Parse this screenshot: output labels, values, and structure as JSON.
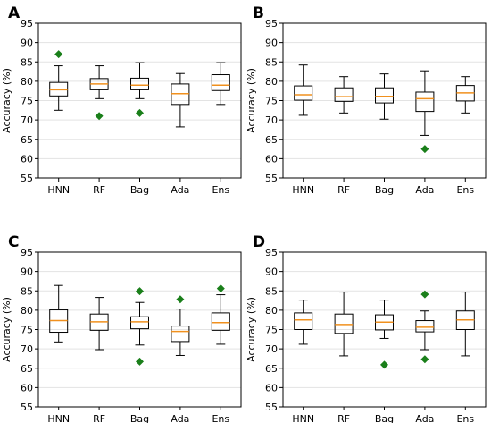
{
  "chart_data": [
    {
      "type": "box",
      "panel": "A",
      "ylabel": "Accuracy (%)",
      "ylim": [
        55,
        95
      ],
      "yticks": [
        55,
        60,
        65,
        70,
        75,
        80,
        85,
        90,
        95
      ],
      "categories": [
        "HNN",
        "RF",
        "Bag",
        "Ada",
        "Ens"
      ],
      "boxes": [
        {
          "whisker_low": 72.5,
          "q1": 76.2,
          "median": 77.8,
          "q3": 79.7,
          "whisker_high": 84.0,
          "outliers": [
            87.0
          ]
        },
        {
          "whisker_low": 75.5,
          "q1": 77.8,
          "median": 79.3,
          "q3": 80.7,
          "whisker_high": 84.0,
          "outliers": [
            71.0
          ]
        },
        {
          "whisker_low": 75.5,
          "q1": 77.8,
          "median": 79.0,
          "q3": 80.8,
          "whisker_high": 84.8,
          "outliers": [
            71.8
          ]
        },
        {
          "whisker_low": 68.2,
          "q1": 74.0,
          "median": 76.8,
          "q3": 79.3,
          "whisker_high": 82.0,
          "outliers": []
        },
        {
          "whisker_low": 74.0,
          "q1": 77.6,
          "median": 79.0,
          "q3": 81.7,
          "whisker_high": 84.8,
          "outliers": []
        }
      ]
    },
    {
      "type": "box",
      "panel": "B",
      "ylabel": "Accuracy (%)",
      "ylim": [
        55,
        95
      ],
      "yticks": [
        55,
        60,
        65,
        70,
        75,
        80,
        85,
        90,
        95
      ],
      "categories": [
        "HNN",
        "RF",
        "Bag",
        "Ada",
        "Ens"
      ],
      "boxes": [
        {
          "whisker_low": 71.2,
          "q1": 75.1,
          "median": 76.5,
          "q3": 78.8,
          "whisker_high": 84.2,
          "outliers": []
        },
        {
          "whisker_low": 71.8,
          "q1": 74.8,
          "median": 76.0,
          "q3": 78.3,
          "whisker_high": 81.2,
          "outliers": []
        },
        {
          "whisker_low": 70.2,
          "q1": 74.4,
          "median": 76.1,
          "q3": 78.3,
          "whisker_high": 81.9,
          "outliers": []
        },
        {
          "whisker_low": 66.0,
          "q1": 72.2,
          "median": 75.5,
          "q3": 77.2,
          "whisker_high": 82.7,
          "outliers": [
            62.5
          ]
        },
        {
          "whisker_low": 71.8,
          "q1": 74.9,
          "median": 77.0,
          "q3": 78.9,
          "whisker_high": 81.2,
          "outliers": []
        }
      ]
    },
    {
      "type": "box",
      "panel": "C",
      "ylabel": "Accuracy (%)",
      "ylim": [
        55,
        95
      ],
      "yticks": [
        55,
        60,
        65,
        70,
        75,
        80,
        85,
        90,
        95
      ],
      "categories": [
        "HNN",
        "RF",
        "Bag",
        "Ada",
        "Ens"
      ],
      "boxes": [
        {
          "whisker_low": 71.8,
          "q1": 74.3,
          "median": 77.3,
          "q3": 80.1,
          "whisker_high": 86.4,
          "outliers": []
        },
        {
          "whisker_low": 69.8,
          "q1": 74.8,
          "median": 77.0,
          "q3": 79.0,
          "whisker_high": 83.3,
          "outliers": []
        },
        {
          "whisker_low": 71.0,
          "q1": 75.2,
          "median": 77.0,
          "q3": 78.3,
          "whisker_high": 82.0,
          "outliers": [
            84.9,
            66.7
          ]
        },
        {
          "whisker_low": 68.3,
          "q1": 71.9,
          "median": 74.5,
          "q3": 75.9,
          "whisker_high": 80.3,
          "outliers": [
            82.8
          ]
        },
        {
          "whisker_low": 71.2,
          "q1": 74.8,
          "median": 76.8,
          "q3": 79.3,
          "whisker_high": 84.0,
          "outliers": [
            85.6
          ]
        }
      ]
    },
    {
      "type": "box",
      "panel": "D",
      "ylabel": "Accuracy (%)",
      "ylim": [
        55,
        95
      ],
      "yticks": [
        55,
        60,
        65,
        70,
        75,
        80,
        85,
        90,
        95
      ],
      "categories": [
        "HNN",
        "RF",
        "Bag",
        "Ada",
        "Ens"
      ],
      "boxes": [
        {
          "whisker_low": 71.2,
          "q1": 75.0,
          "median": 77.5,
          "q3": 79.3,
          "whisker_high": 82.6,
          "outliers": []
        },
        {
          "whisker_low": 68.2,
          "q1": 74.0,
          "median": 76.3,
          "q3": 79.0,
          "whisker_high": 84.7,
          "outliers": []
        },
        {
          "whisker_low": 72.7,
          "q1": 74.9,
          "median": 76.9,
          "q3": 78.8,
          "whisker_high": 82.6,
          "outliers": [
            65.9
          ]
        },
        {
          "whisker_low": 69.8,
          "q1": 74.4,
          "median": 75.6,
          "q3": 77.3,
          "whisker_high": 79.8,
          "outliers": [
            84.1,
            67.3
          ]
        },
        {
          "whisker_low": 68.2,
          "q1": 75.0,
          "median": 77.5,
          "q3": 79.8,
          "whisker_high": 84.7,
          "outliers": []
        }
      ]
    }
  ],
  "style": {
    "median_color": "#f0901e",
    "outlier_color": "#1a7f1a",
    "box_color": "#000000",
    "grid": true,
    "grid_color": "#e3e3e3"
  }
}
